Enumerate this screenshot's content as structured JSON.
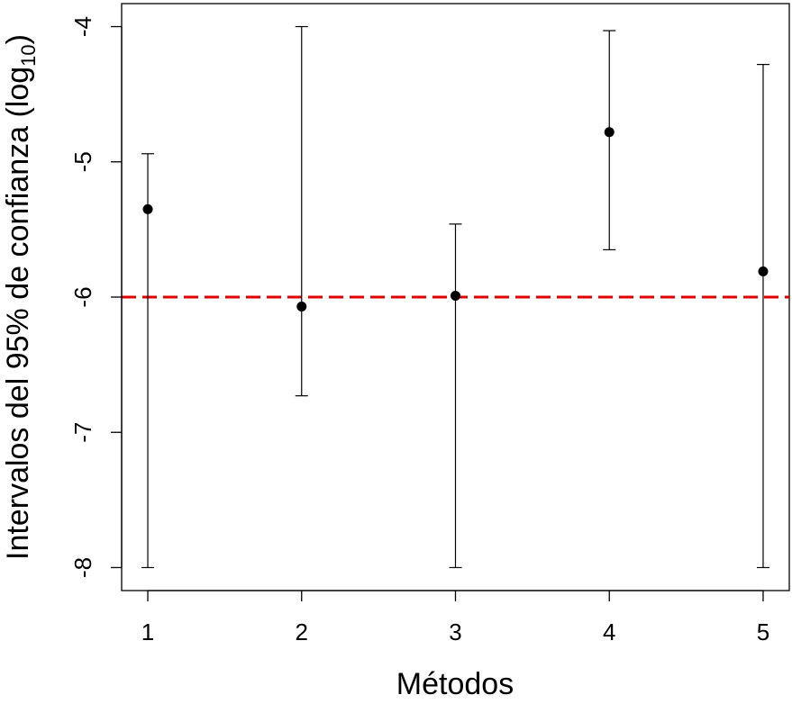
{
  "chart_data": {
    "type": "scatter",
    "xlabel": "Métodos",
    "ylabel": {
      "prefix": "Intervalos del 95% de confianza (log",
      "subscript": "10",
      "suffix": ")"
    },
    "x_ticks": [
      "1",
      "2",
      "3",
      "4",
      "5"
    ],
    "y_ticks": [
      "-8",
      "-7",
      "-6",
      "-5",
      "-4"
    ],
    "xlim": [
      0.83,
      5.17
    ],
    "ylim": [
      -8.17,
      -3.83
    ],
    "points": [
      {
        "x": 1,
        "estimate": -5.35,
        "lower": -8.0,
        "upper": -4.94
      },
      {
        "x": 2,
        "estimate": -6.07,
        "lower": -6.73,
        "upper": -4.0
      },
      {
        "x": 3,
        "estimate": -5.99,
        "lower": -8.0,
        "upper": -5.46
      },
      {
        "x": 4,
        "estimate": -4.78,
        "lower": -5.65,
        "upper": -4.03
      },
      {
        "x": 5,
        "estimate": -5.81,
        "lower": -8.0,
        "upper": -4.28
      }
    ],
    "reference_line": {
      "y": -6.0,
      "color": "#e00000",
      "style": "dashed"
    },
    "point_color": "#000000",
    "grid": false,
    "legend": "none"
  }
}
